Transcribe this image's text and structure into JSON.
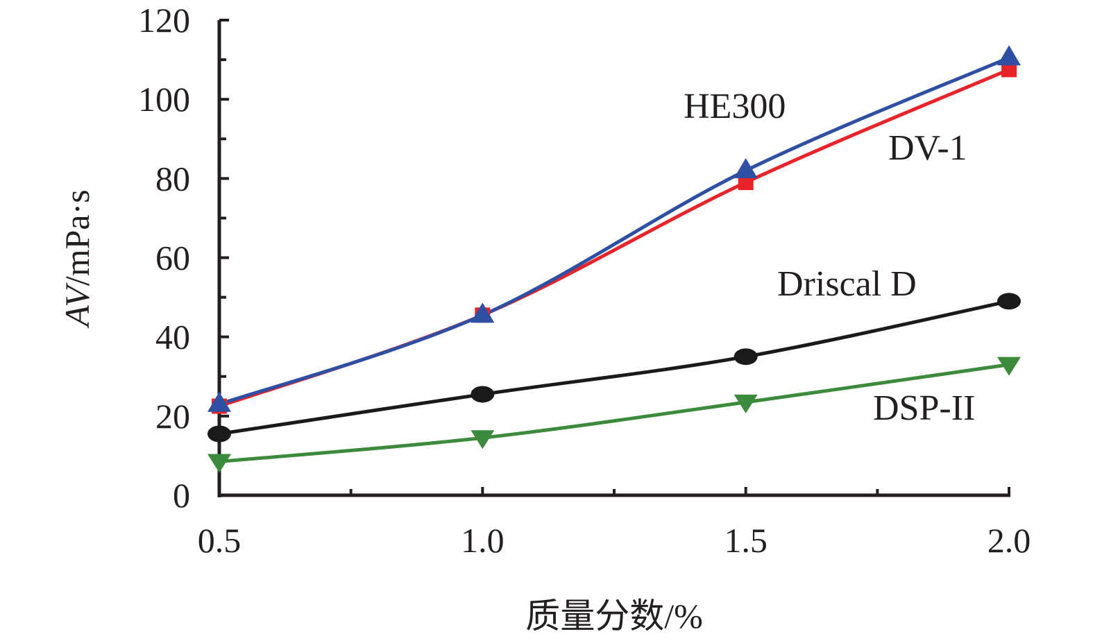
{
  "chart_data": {
    "type": "line",
    "title": "",
    "xlabel": "质量分数/%",
    "ylabel": "AV/mPa·s",
    "ylabel_parts": {
      "italic": "AV",
      "rest": "/mPa·s"
    },
    "x": [
      0.5,
      1.0,
      1.5,
      2.0
    ],
    "x_tick_labels": [
      "0.5",
      "1.0",
      "1.5",
      "2.0"
    ],
    "y_ticks": [
      0,
      20,
      40,
      60,
      80,
      100,
      120
    ],
    "y_tick_labels": [
      "0",
      "20",
      "40",
      "60",
      "80",
      "100",
      "120"
    ],
    "xlim": [
      0.5,
      2.0
    ],
    "ylim": [
      0,
      120
    ],
    "grid": false,
    "legend": "none",
    "series": [
      {
        "name": "DV-1",
        "marker": "square",
        "color": "#e8232a",
        "values": [
          22.5,
          45.5,
          79,
          107.5
        ]
      },
      {
        "name": "HE300",
        "marker": "triangle-up",
        "color": "#2f4fa2",
        "values": [
          23,
          45.5,
          82,
          110.5
        ]
      },
      {
        "name": "Driscal D",
        "marker": "circle",
        "color": "#1a1a1a",
        "values": [
          15.5,
          25.5,
          35,
          49
        ]
      },
      {
        "name": "DSP-II",
        "marker": "triangle-down",
        "color": "#3c8a3c",
        "values": [
          8.5,
          14.5,
          23.5,
          33
        ]
      }
    ]
  }
}
